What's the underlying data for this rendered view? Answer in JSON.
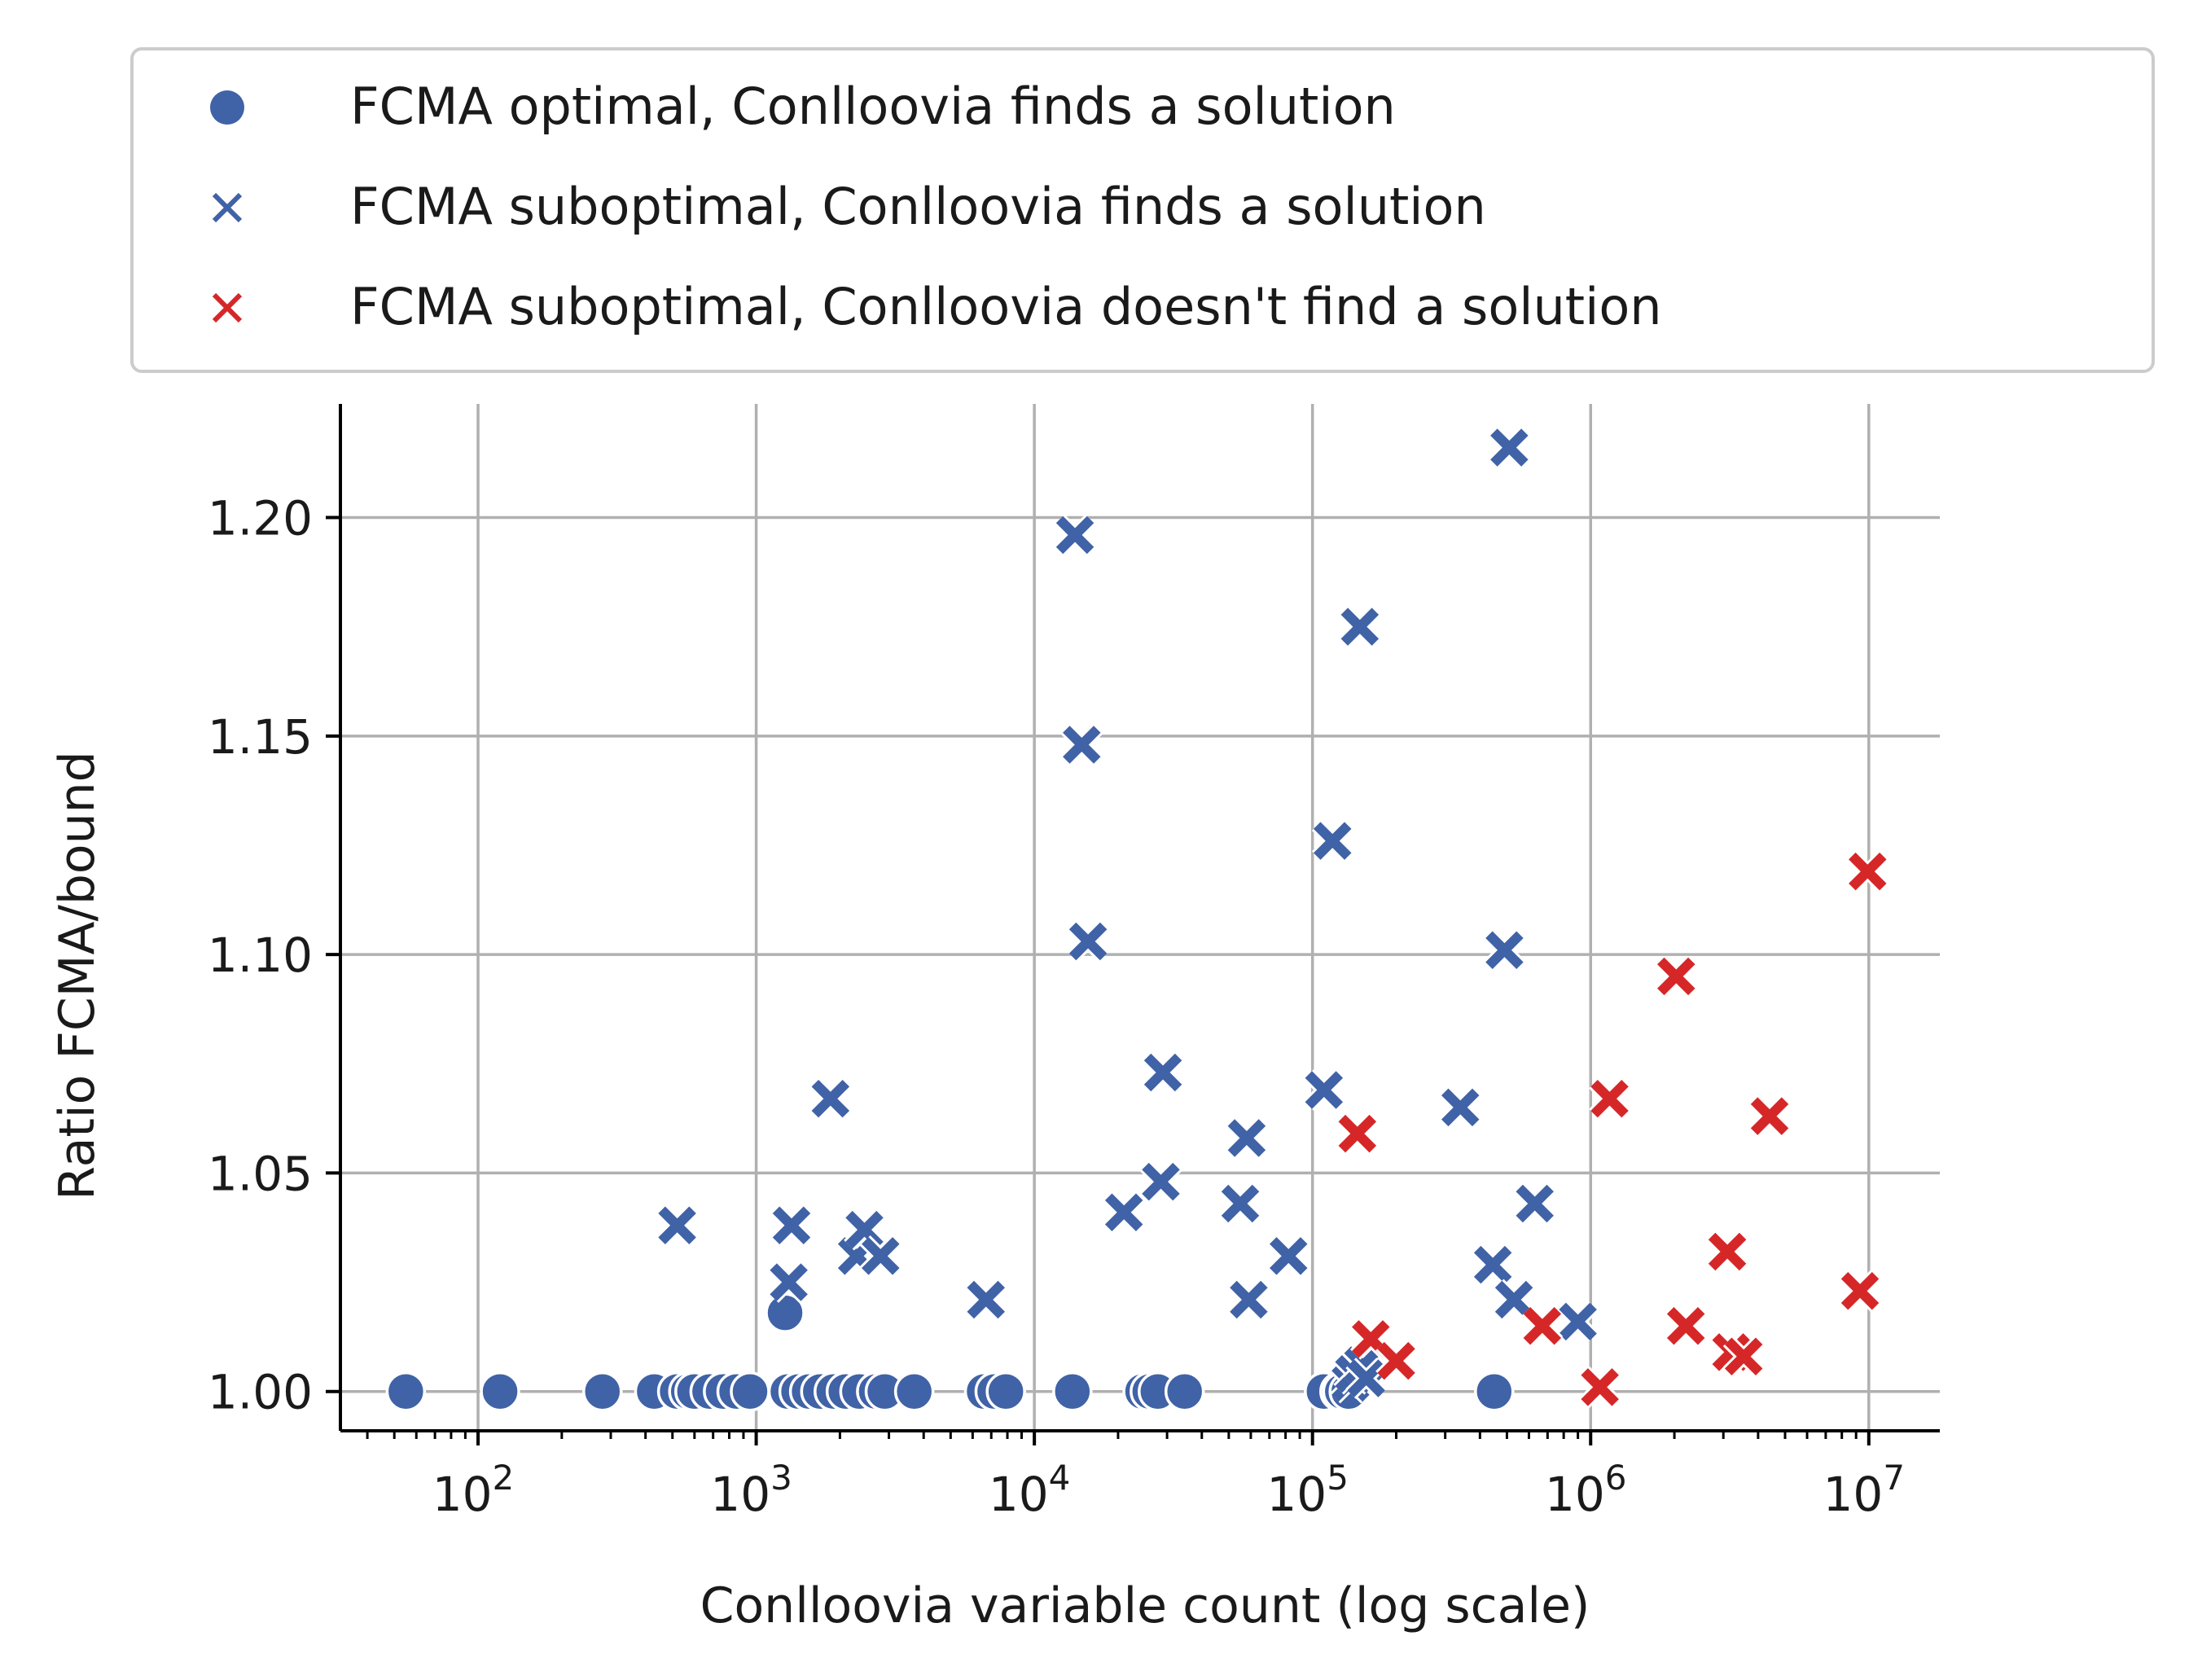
{
  "chart_data": {
    "type": "scatter",
    "xlabel": "Conlloovia variable count (log scale)",
    "ylabel": "Ratio FCMA/bound",
    "x_scale": "log",
    "xlim": [
      32,
      18000000
    ],
    "ylim": [
      0.991,
      1.226
    ],
    "x_ticks": [
      {
        "value": 100,
        "base": "10",
        "exp": "2"
      },
      {
        "value": 1000,
        "base": "10",
        "exp": "3"
      },
      {
        "value": 10000,
        "base": "10",
        "exp": "4"
      },
      {
        "value": 100000,
        "base": "10",
        "exp": "5"
      },
      {
        "value": 1000000,
        "base": "10",
        "exp": "6"
      },
      {
        "value": 10000000,
        "base": "10",
        "exp": "7"
      }
    ],
    "y_ticks": [
      {
        "value": 1.0,
        "label": "1.00"
      },
      {
        "value": 1.05,
        "label": "1.05"
      },
      {
        "value": 1.1,
        "label": "1.10"
      },
      {
        "value": 1.15,
        "label": "1.15"
      },
      {
        "value": 1.2,
        "label": "1.20"
      }
    ],
    "grid": true,
    "legend_position": "top",
    "series": [
      {
        "name": "FCMA optimal, Conlloovia finds a solution",
        "marker": "circle",
        "color": "#4062a6",
        "points": [
          [
            55,
            1.0
          ],
          [
            120,
            1.0
          ],
          [
            280,
            1.0
          ],
          [
            430,
            1.0
          ],
          [
            520,
            1.0
          ],
          [
            570,
            1.0
          ],
          [
            600,
            1.0
          ],
          [
            680,
            1.0
          ],
          [
            760,
            1.0
          ],
          [
            850,
            1.0
          ],
          [
            950,
            1.0
          ],
          [
            1270,
            1.018
          ],
          [
            1300,
            1.0
          ],
          [
            1420,
            1.0
          ],
          [
            1550,
            1.0
          ],
          [
            1700,
            1.0
          ],
          [
            1900,
            1.0
          ],
          [
            2100,
            1.0
          ],
          [
            2350,
            1.0
          ],
          [
            2700,
            1.0
          ],
          [
            2900,
            1.0
          ],
          [
            3700,
            1.0
          ],
          [
            6600,
            1.0
          ],
          [
            7200,
            1.0
          ],
          [
            7900,
            1.0
          ],
          [
            13700,
            1.0
          ],
          [
            24500,
            1.0
          ],
          [
            26000,
            1.0
          ],
          [
            27800,
            1.0
          ],
          [
            34700,
            1.0
          ],
          [
            110000,
            1.0
          ],
          [
            125000,
            1.0
          ],
          [
            128000,
            1.0
          ],
          [
            135000,
            1.0
          ],
          [
            450000,
            1.0
          ]
        ]
      },
      {
        "name": "FCMA suboptimal, Conlloovia finds a solution",
        "marker": "x",
        "color": "#4062a6",
        "points": [
          [
            520,
            1.038
          ],
          [
            1310,
            1.025
          ],
          [
            1340,
            1.038
          ],
          [
            1850,
            1.067
          ],
          [
            2300,
            1.031
          ],
          [
            2450,
            1.037
          ],
          [
            2800,
            1.031
          ],
          [
            6700,
            1.021
          ],
          [
            14000,
            1.196
          ],
          [
            14800,
            1.148
          ],
          [
            15600,
            1.103
          ],
          [
            21000,
            1.041
          ],
          [
            28500,
            1.048
          ],
          [
            29000,
            1.073
          ],
          [
            55000,
            1.043
          ],
          [
            58000,
            1.058
          ],
          [
            59000,
            1.021
          ],
          [
            82000,
            1.031
          ],
          [
            110000,
            1.069
          ],
          [
            118000,
            1.126
          ],
          [
            137000,
            1.002
          ],
          [
            141000,
            1.004
          ],
          [
            148000,
            1.175
          ],
          [
            152000,
            1.006
          ],
          [
            156000,
            1.003
          ],
          [
            340000,
            1.065
          ],
          [
            445000,
            1.029
          ],
          [
            490000,
            1.101
          ],
          [
            510000,
            1.216
          ],
          [
            530000,
            1.021
          ],
          [
            630000,
            1.043
          ],
          [
            900000,
            1.016
          ]
        ]
      },
      {
        "name": "FCMA suboptimal, Conlloovia doesn't find a solution",
        "marker": "x",
        "color": "#d62728",
        "points": [
          [
            145000,
            1.059
          ],
          [
            162000,
            1.012
          ],
          [
            200000,
            1.007
          ],
          [
            670000,
            1.015
          ],
          [
            1080000,
            1.001
          ],
          [
            1170000,
            1.067
          ],
          [
            2030000,
            1.095
          ],
          [
            2200000,
            1.015
          ],
          [
            3100000,
            1.032
          ],
          [
            3200000,
            1.009
          ],
          [
            3550000,
            1.008
          ],
          [
            4400000,
            1.063
          ],
          [
            9300000,
            1.023
          ],
          [
            9900000,
            1.119
          ]
        ]
      }
    ]
  }
}
